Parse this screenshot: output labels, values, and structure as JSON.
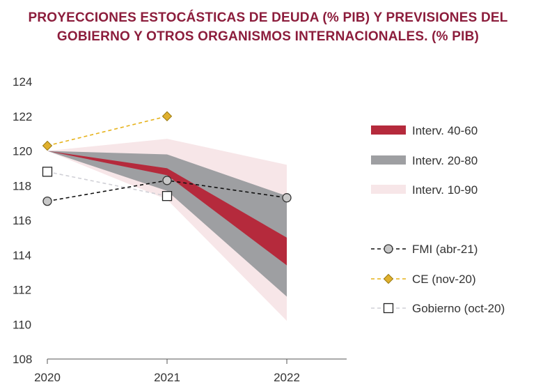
{
  "title": {
    "line1": "PROYECCIONES ESTOCÁSTICAS DE DEUDA (% PIB) Y PREVISIONES DEL",
    "line2": "GOBIERNO Y OTROS ORGANISMOS INTERNACIONALES. (% PIB)"
  },
  "colors": {
    "title": "#8c1d3c",
    "band_40_60": "#b52a3c",
    "band_20_80": "#9e9fa2",
    "band_10_90": "#f7e6e8",
    "fmi": "#111111",
    "fmi_marker": "#c8c8c8",
    "ce": "#e6b21a",
    "ce_marker": "#e0b02e",
    "gobierno": "#d0d0d6"
  },
  "chart_data": {
    "type": "line",
    "x": [
      "2020",
      "2021",
      "2022"
    ],
    "ylim": [
      108,
      124
    ],
    "yticks": [
      "108",
      "110",
      "112",
      "114",
      "116",
      "118",
      "120",
      "122",
      "124"
    ],
    "bands": [
      {
        "name": "Interv. 10-90",
        "lower": [
          120.0,
          117.2,
          110.2
        ],
        "upper": [
          120.0,
          120.7,
          119.2
        ]
      },
      {
        "name": "Interv. 20-80",
        "lower": [
          120.0,
          117.7,
          111.6
        ],
        "upper": [
          120.0,
          119.8,
          117.4
        ]
      },
      {
        "name": "Interv. 40-60",
        "lower": [
          120.0,
          118.6,
          113.4
        ],
        "upper": [
          120.0,
          119.0,
          115.0
        ]
      }
    ],
    "series": [
      {
        "name": "FMI (abr-21)",
        "values": [
          117.1,
          118.3,
          117.3
        ],
        "style": "dashed",
        "marker": "circle"
      },
      {
        "name": "CE (nov-20)",
        "values": [
          120.3,
          122.0,
          null
        ],
        "style": "dashed",
        "marker": "diamond"
      },
      {
        "name": "Gobierno (oct-20)",
        "values": [
          118.8,
          117.4,
          null
        ],
        "style": "dashed",
        "marker": "square"
      }
    ],
    "legend": {
      "position": "right",
      "band_labels": [
        "Interv. 40-60",
        "Interv. 20-80",
        "Interv. 10-90"
      ],
      "line_labels": [
        "FMI (abr-21)",
        "CE (nov-20)",
        "Gobierno (oct-20)"
      ]
    }
  }
}
